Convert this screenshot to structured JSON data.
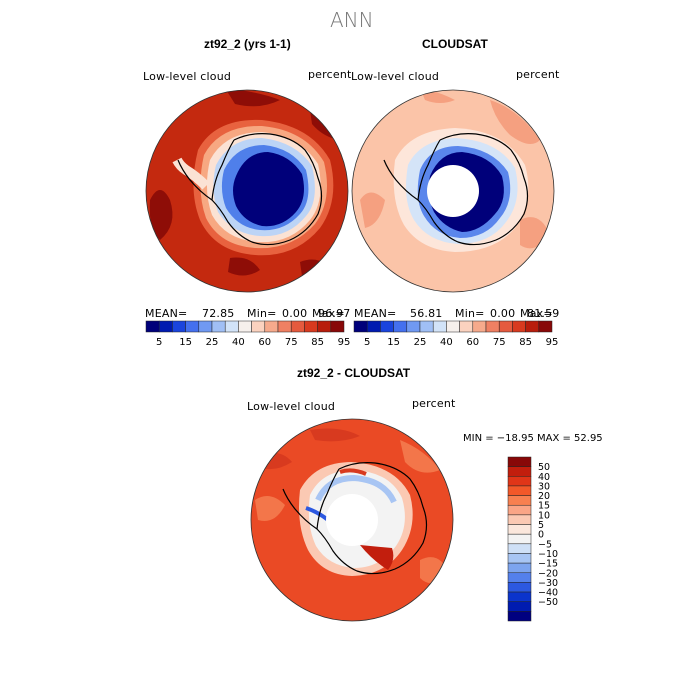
{
  "figure": {
    "title": "ANN"
  },
  "panels": {
    "model": {
      "title": "zt92_2 (yrs 1-1)",
      "variable": "Low-level cloud",
      "units": "percent",
      "stats": {
        "mean_label": "MEAN=",
        "mean": "72.85",
        "min_label": "Min=",
        "min": "0.00",
        "max_label": "Max=",
        "max": "96.97"
      }
    },
    "obs": {
      "title": "CLOUDSAT",
      "variable": "Low-level cloud",
      "units": "percent",
      "stats": {
        "mean_label": "MEAN=",
        "mean": "56.81",
        "min_label": "Min=",
        "min": "0.00",
        "max_label": "Max=",
        "max": "81.59"
      }
    },
    "diff": {
      "title": "zt92_2 - CLOUDSAT",
      "variable": "Low-level cloud",
      "units": "percent",
      "range_text": "MIN = −18.95 MAX =  52.95"
    }
  },
  "colorbars": {
    "shared": {
      "colors": [
        "#00007a",
        "#001ab0",
        "#1a44dd",
        "#4470ee",
        "#7099f2",
        "#a0bff5",
        "#d2e3f8",
        "#f6f0ec",
        "#fbd2bf",
        "#f6aa8c",
        "#ef8063",
        "#e55a3e",
        "#d83a1f",
        "#b81d0c",
        "#880808"
      ],
      "labels": [
        "5",
        "15",
        "25",
        "40",
        "60",
        "75",
        "85",
        "95"
      ]
    },
    "diff": {
      "colors": [
        "#880808",
        "#c21e0d",
        "#e03518",
        "#f25829",
        "#f78050",
        "#faa586",
        "#fbc9b3",
        "#fbe7dc",
        "#f3f3f3",
        "#cfe0f6",
        "#a8c5f3",
        "#7da4ee",
        "#5480eb",
        "#2c58e0",
        "#0b34cc",
        "#001bb0",
        "#000080"
      ],
      "labels": [
        "50",
        "40",
        "30",
        "20",
        "15",
        "10",
        "5",
        "0",
        "−5",
        "−10",
        "−15",
        "−20",
        "−30",
        "−40",
        "−50"
      ]
    }
  },
  "map_colors": {
    "model_ocean": "#c4290f",
    "model_ocean_dark": "#8e0d07",
    "obs_ocean": "#fbc4a8",
    "obs_ocean_mid": "#f5a080",
    "diff_ocean": "#ea4a25",
    "diff_ocean_light": "#f3764a",
    "ice_dark": "#00007a",
    "coast": "#000000"
  }
}
